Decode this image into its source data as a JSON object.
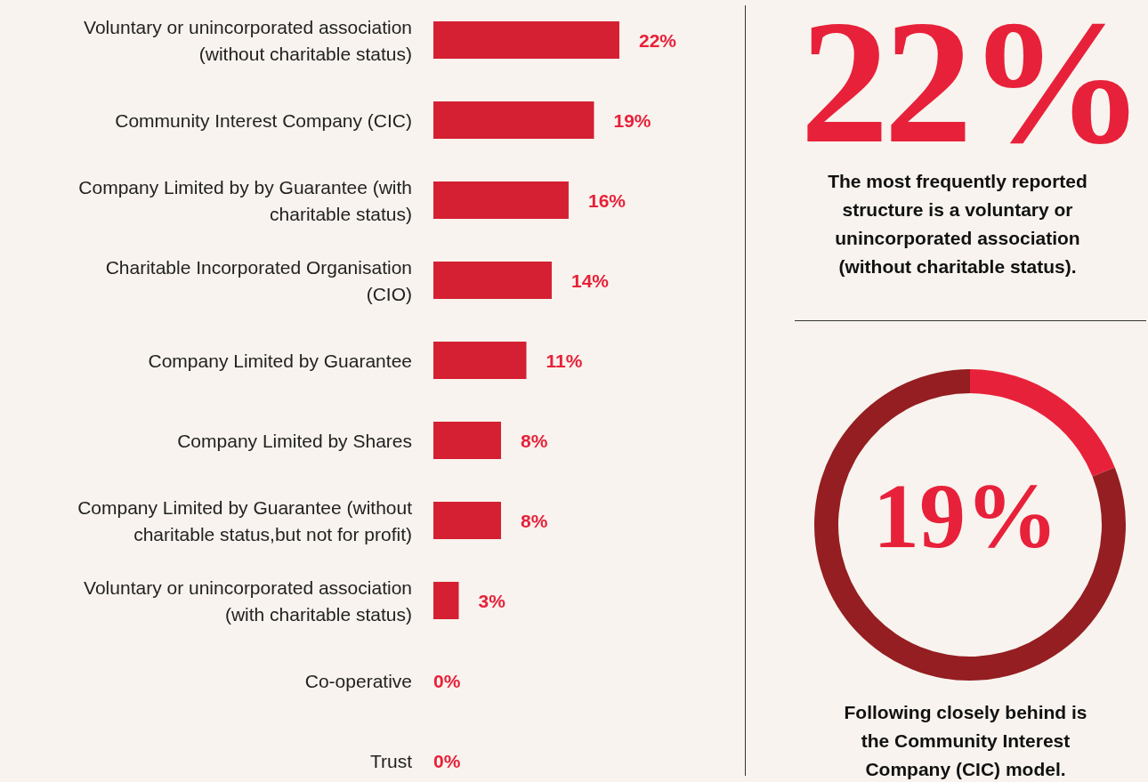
{
  "chart_data": [
    {
      "type": "bar",
      "orientation": "horizontal",
      "color": "#d42032",
      "value_labels": [
        "22%",
        "19%",
        "16%",
        "14%",
        "11%",
        "8%",
        "8%",
        "3%",
        "0%",
        "0%"
      ],
      "categories": [
        "Voluntary or unincorporated association (without charitable status)",
        "Community Interest Company (CIC)",
        "Company Limited by by Guarantee (with charitable status)",
        "Charitable Incorporated Organisation (CIO)",
        "Company Limited by Guarantee",
        "Company Limited by Shares",
        "Company Limited by Guarantee (without charitable status,but not for profit)",
        "Voluntary or unincorporated association (with charitable status)",
        "Co-operative",
        "Trust"
      ],
      "values": [
        22,
        19,
        16,
        14,
        11,
        8,
        8,
        3,
        0,
        0
      ]
    },
    {
      "type": "other",
      "annotations": [
        "22%",
        "The most frequently reported structure is a voluntary or unincorporated association (without charitable status)."
      ]
    },
    {
      "type": "donut",
      "categories": [
        null,
        null
      ],
      "values": [
        19,
        81
      ],
      "colors": [
        "#e8213a",
        "#941e21"
      ],
      "annotations": [
        "19%",
        "Following closely behind is the Community Interest Company (CIC) model."
      ]
    }
  ]
}
